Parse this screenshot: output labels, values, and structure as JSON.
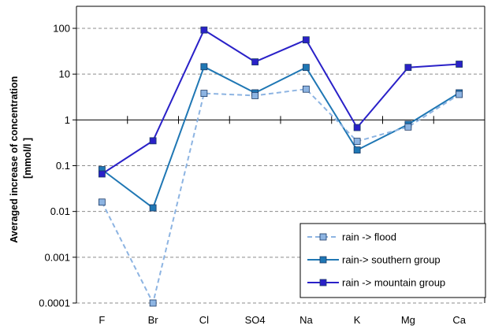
{
  "chart_data": {
    "type": "line",
    "title": "",
    "xlabel": "",
    "ylabel_lines": [
      "Averaged increase of concentration",
      "[mmol/l ]"
    ],
    "categories": [
      "F",
      "Br",
      "Cl",
      "SO4",
      "Na",
      "K",
      "Mg",
      "Ca"
    ],
    "y_scale": "log",
    "ylim": [
      0.0001,
      100
    ],
    "y_ticks": [
      0.0001,
      0.001,
      0.01,
      0.1,
      1,
      10,
      100
    ],
    "y_tick_labels": [
      "0.0001",
      "0.001",
      "0.01",
      "0.1",
      "1",
      "10",
      "100"
    ],
    "x_axis_crosses_at": 1,
    "grid": "horizontal dashed",
    "legend_position": "bottom-right",
    "series": [
      {
        "name": "rain -> flood",
        "values": [
          0.016,
          0.0001,
          3.8,
          3.4,
          4.7,
          0.34,
          0.7,
          3.6
        ],
        "color": "#8db4e2",
        "line_style": "dashed"
      },
      {
        "name": "rain-> southern group",
        "values": [
          0.082,
          0.012,
          14.5,
          3.9,
          14,
          0.22,
          0.8,
          3.9
        ],
        "color": "#1f77b4",
        "line_style": "solid"
      },
      {
        "name": "rain -> mountain group",
        "values": [
          0.066,
          0.35,
          92,
          18.5,
          56,
          0.68,
          14,
          16.5
        ],
        "color": "#2a21c8",
        "line_style": "solid"
      }
    ]
  }
}
